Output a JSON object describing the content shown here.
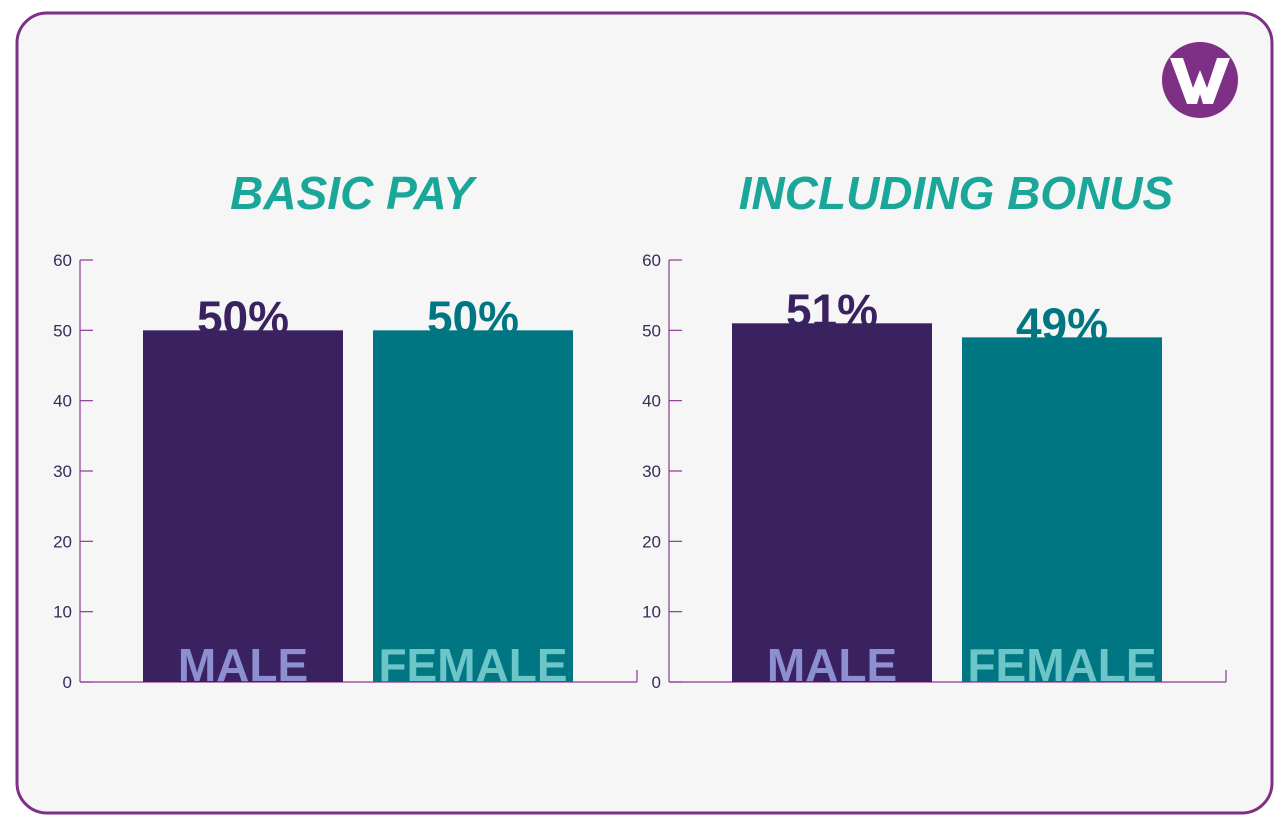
{
  "chart_data": [
    {
      "type": "bar",
      "title": "BASIC PAY",
      "categories": [
        "MALE",
        "FEMALE"
      ],
      "values": [
        50,
        50
      ],
      "value_labels": [
        "50%",
        "50%"
      ],
      "colors": [
        "#3a2260",
        "#007682"
      ],
      "label_colors": [
        "#8d8fd0",
        "#6cc6c8"
      ],
      "ylim": [
        0,
        60
      ],
      "yticks": [
        0,
        10,
        20,
        30,
        40,
        50,
        60
      ]
    },
    {
      "type": "bar",
      "title": "INCLUDING BONUS",
      "categories": [
        "MALE",
        "FEMALE"
      ],
      "values": [
        51,
        49
      ],
      "value_labels": [
        "51%",
        "49%"
      ],
      "colors": [
        "#3a2260",
        "#007682"
      ],
      "label_colors": [
        "#8d8fd0",
        "#6cc6c8"
      ],
      "ylim": [
        0,
        60
      ],
      "yticks": [
        0,
        10,
        20,
        30,
        40,
        50,
        60
      ]
    }
  ]
}
